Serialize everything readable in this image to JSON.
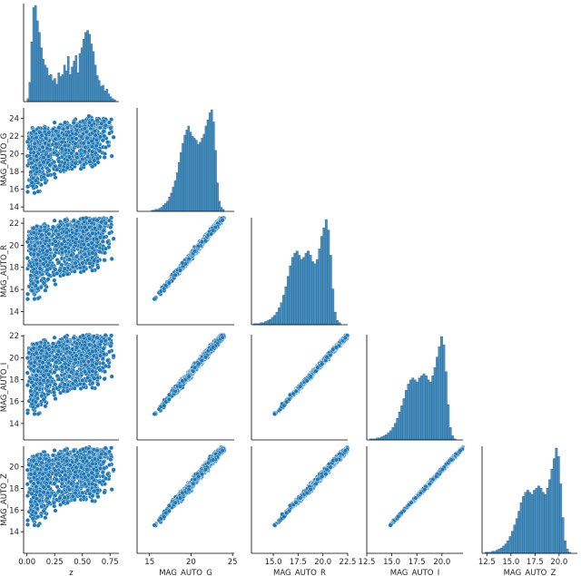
{
  "chart_data": {
    "type": "scatter",
    "layout": "pairplot-lower-corner",
    "variables": [
      "z",
      "MAG_AUTO_G",
      "MAG_AUTO_R",
      "MAG_AUTO_I",
      "MAG_AUTO_Z"
    ],
    "axis_labels": {
      "x": [
        "z",
        "MAG_AUTO_G",
        "MAG_AUTO_R",
        "MAG_AUTO_I",
        "MAG_AUTO_Z"
      ],
      "y": [
        "",
        "MAG_AUTO_G",
        "MAG_AUTO_R",
        "MAG_AUTO_I",
        "MAG_AUTO_Z"
      ]
    },
    "ranges": {
      "z": [
        -0.03,
        0.83
      ],
      "MAG_AUTO_G": [
        13.5,
        25.2
      ],
      "MAG_AUTO_R": [
        12.8,
        22.5
      ],
      "MAG_AUTO_I": [
        12.5,
        22.1
      ],
      "MAG_AUTO_Z": [
        12.0,
        21.9
      ]
    },
    "x_ticks": {
      "z": [
        "0.00",
        "0.25",
        "0.50",
        "0.75"
      ],
      "MAG_AUTO_G": [
        "15",
        "20",
        "25"
      ],
      "MAG_AUTO_R": [
        "15.0",
        "17.5",
        "20.0",
        "22.5"
      ],
      "MAG_AUTO_I": [
        "12.5",
        "15.0",
        "17.5",
        "20.0"
      ],
      "MAG_AUTO_Z": [
        "12.5",
        "15.0",
        "17.5",
        "20.0"
      ]
    },
    "y_ticks": {
      "MAG_AUTO_G": [
        "14",
        "16",
        "18",
        "20",
        "22",
        "24"
      ],
      "MAG_AUTO_R": [
        "14",
        "16",
        "18",
        "20",
        "22"
      ],
      "MAG_AUTO_I": [
        "14",
        "16",
        "18",
        "20",
        "22"
      ],
      "MAG_AUTO_Z": [
        "14",
        "16",
        "18",
        "20",
        "22"
      ]
    },
    "histograms": {
      "z": {
        "bin_range": [
          0.0,
          0.8
        ],
        "counts": [
          3,
          20,
          62,
          98,
          100,
          84,
          72,
          56,
          44,
          38,
          35,
          27,
          28,
          22,
          24,
          18,
          30,
          26,
          28,
          38,
          32,
          47,
          28,
          36,
          42,
          48,
          30,
          50,
          56,
          65,
          72,
          74,
          70,
          60,
          52,
          38,
          27,
          22,
          16,
          17,
          11,
          13,
          8,
          5,
          3,
          2
        ]
      },
      "MAG_AUTO_G": {
        "bin_range": [
          15.2,
          24.0
        ],
        "counts": [
          1,
          1,
          2,
          2,
          3,
          4,
          6,
          8,
          10,
          14,
          18,
          24,
          30,
          38,
          48,
          58,
          67,
          75,
          80,
          84,
          78,
          74,
          72,
          70,
          66,
          68,
          72,
          76,
          84,
          90,
          97,
          100,
          88,
          60,
          28,
          10,
          4,
          2
        ]
      },
      "MAG_AUTO_R": {
        "bin_range": [
          13.0,
          21.8
        ],
        "counts": [
          1,
          1,
          1,
          2,
          2,
          3,
          4,
          5,
          7,
          9,
          12,
          16,
          21,
          28,
          36,
          46,
          56,
          64,
          68,
          70,
          66,
          62,
          64,
          68,
          70,
          66,
          60,
          58,
          62,
          72,
          84,
          92,
          100,
          90,
          66,
          34,
          12,
          4,
          2
        ]
      },
      "MAG_AUTO_I": {
        "bin_range": [
          12.8,
          21.4
        ],
        "counts": [
          1,
          1,
          1,
          2,
          2,
          3,
          4,
          5,
          7,
          9,
          12,
          16,
          21,
          27,
          33,
          40,
          48,
          54,
          58,
          60,
          58,
          56,
          60,
          62,
          64,
          62,
          58,
          56,
          62,
          70,
          80,
          90,
          100,
          92,
          66,
          34,
          12,
          4,
          1
        ]
      },
      "MAG_AUTO_Z": {
        "bin_range": [
          12.3,
          21.2
        ],
        "counts": [
          1,
          1,
          1,
          2,
          2,
          3,
          4,
          5,
          7,
          9,
          12,
          16,
          21,
          27,
          33,
          40,
          48,
          54,
          58,
          60,
          58,
          56,
          60,
          62,
          64,
          62,
          58,
          56,
          62,
          70,
          80,
          90,
          100,
          92,
          66,
          34,
          12,
          4,
          1
        ]
      }
    },
    "scatter_trends": {
      "MAG_AUTO_G_vs_z": "lower envelope rises from ~14 at z=0.02 to ~18 at z=0.8; upper envelope ~22.5 to 24",
      "MAG_AUTO_R_vs_z": "lower envelope ~13.5 at z=0.02 to ~17 at z=0.8; upper ~21 to 22",
      "MAG_AUTO_I_vs_z": "lower envelope ~13 at z=0.02 to ~16.5 at z=0.8; upper ~20.5 to 21.8",
      "MAG_AUTO_Z_vs_z": "lower envelope ~12.7 at z=0.02 to ~16 at z=0.8; upper ~20 to 21.5",
      "band_correlations": "tight near-linear relations between G, R, I and Z magnitudes, tightest for I vs Z"
    },
    "color": "#1f77b4",
    "grid": false
  }
}
